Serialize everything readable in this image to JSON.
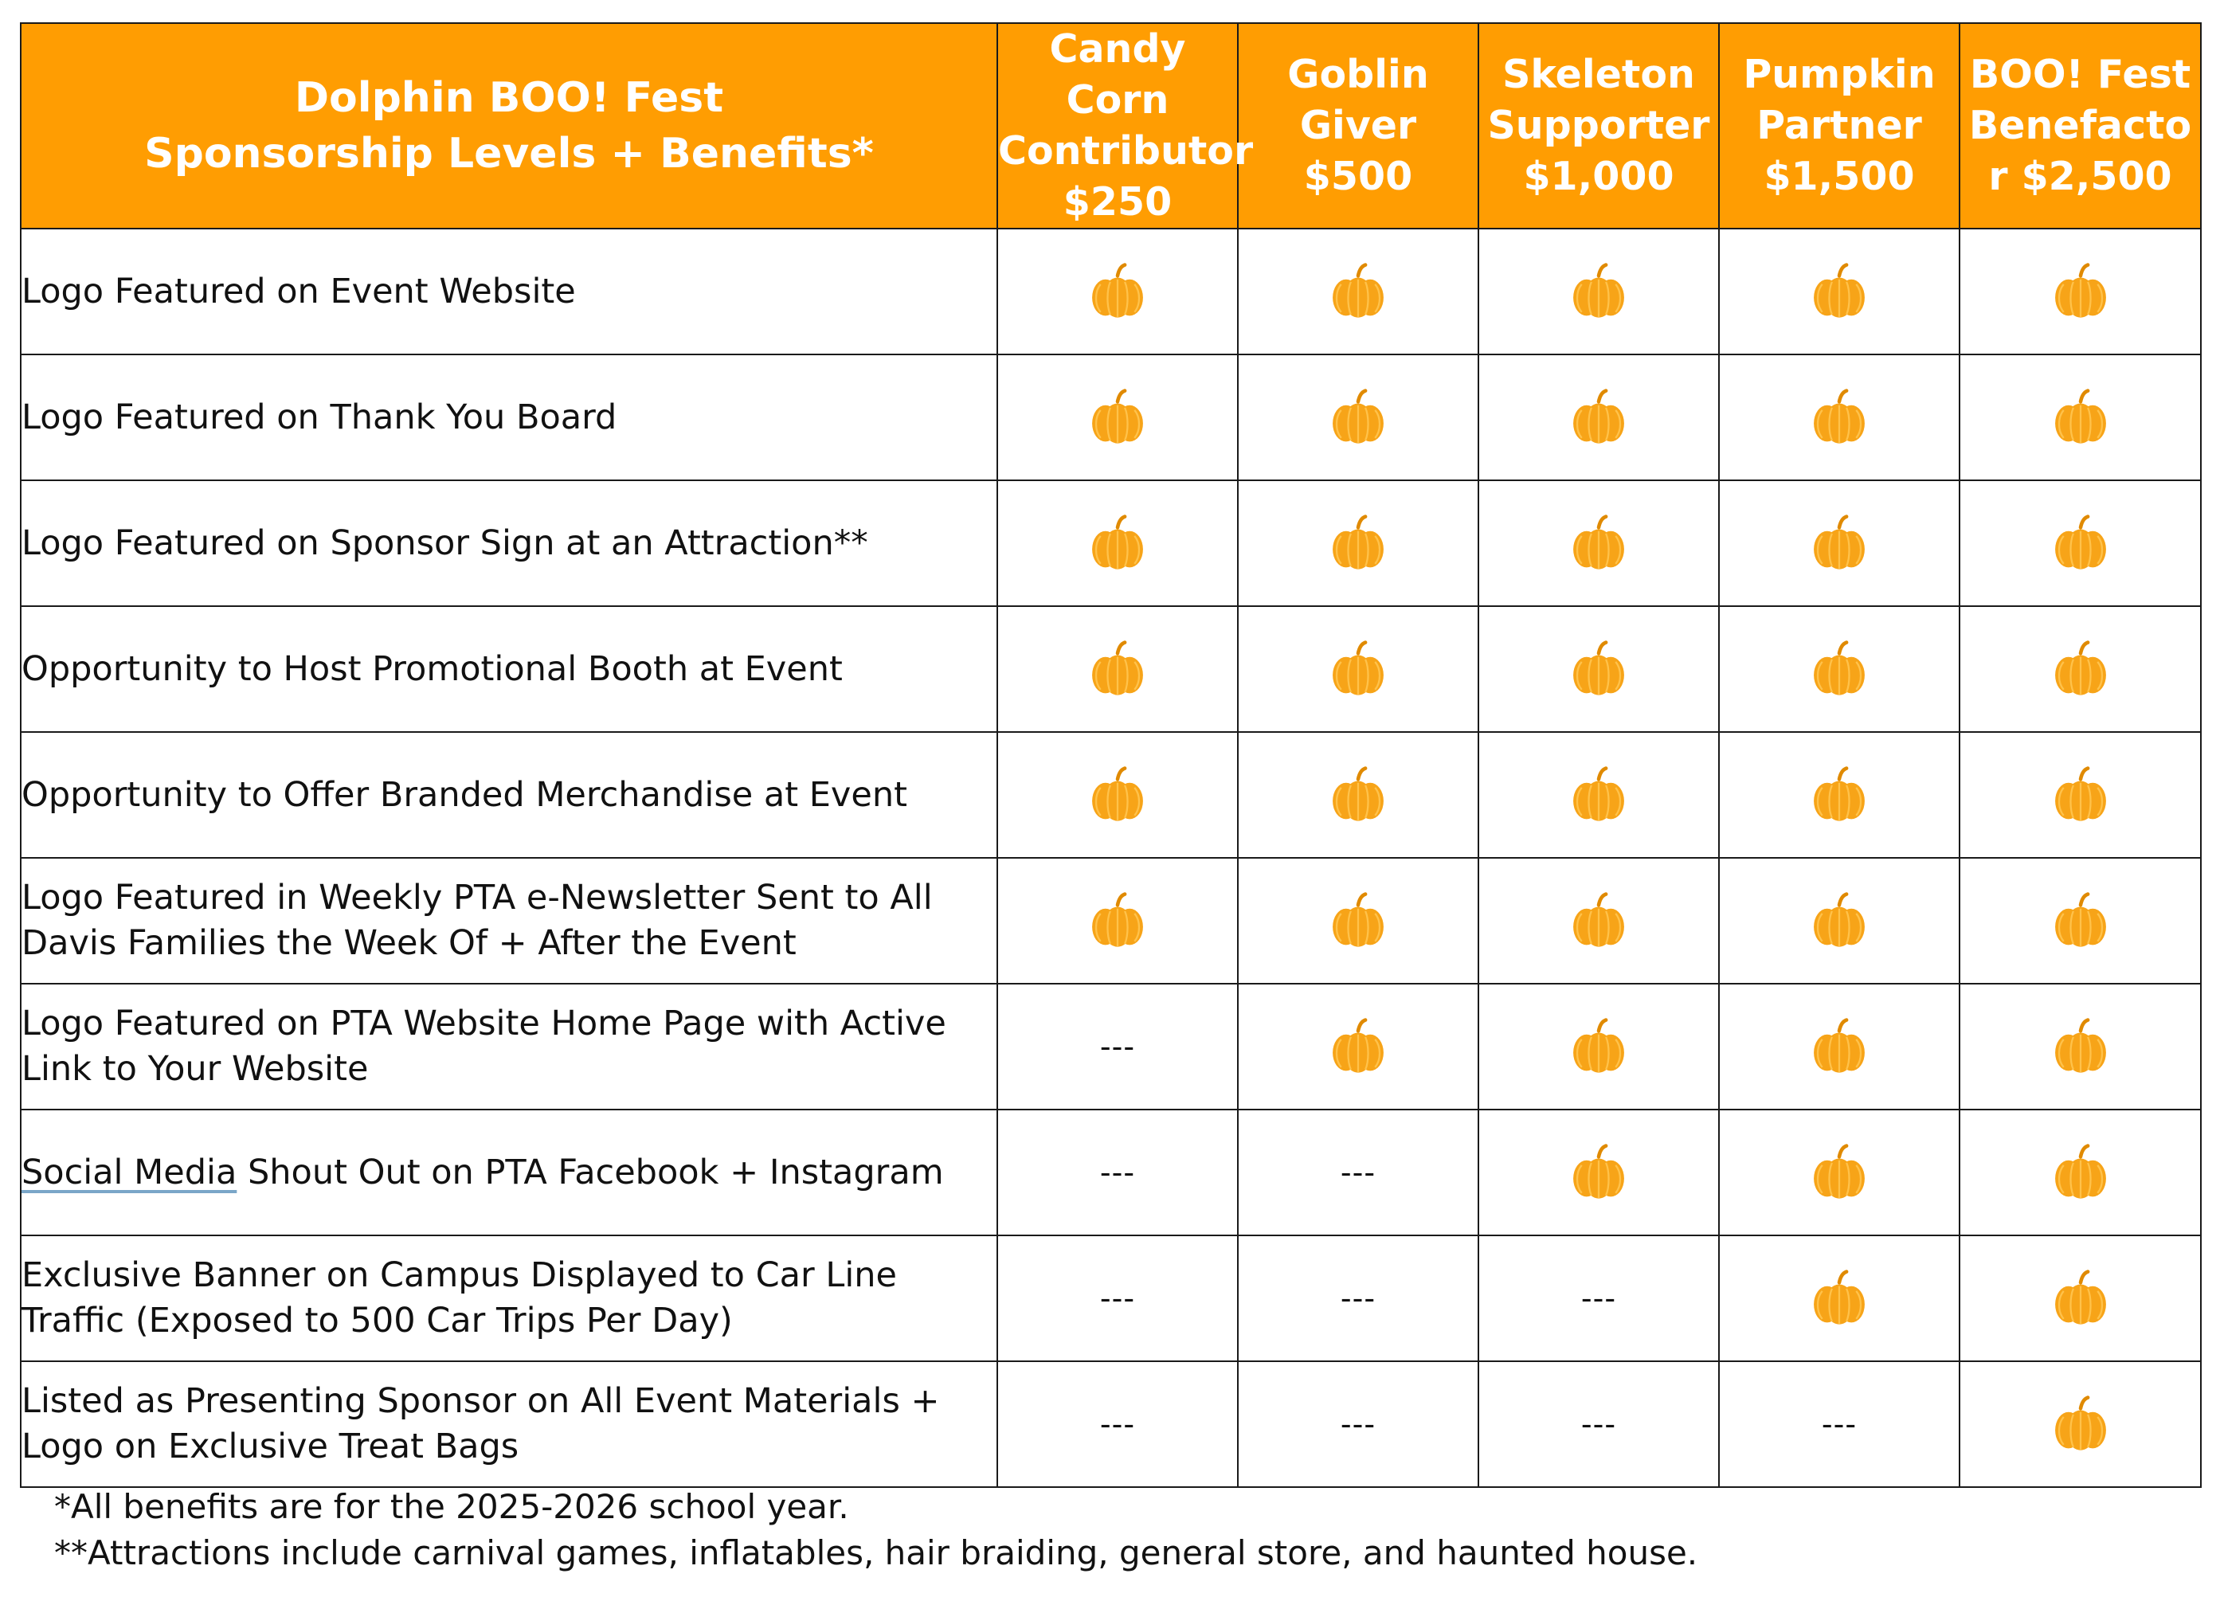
{
  "table": {
    "title_line1": "Dolphin BOO! Fest",
    "title_line2": "Sponsorship Levels + Benefits*",
    "levels": [
      {
        "lines": [
          "Candy Corn",
          "Contributor",
          "$250"
        ]
      },
      {
        "lines": [
          "Goblin",
          "Giver",
          "$500"
        ]
      },
      {
        "lines": [
          "Skeleton",
          "Supporter",
          "$1,000"
        ]
      },
      {
        "lines": [
          "Pumpkin",
          "Partner",
          "$1,500"
        ]
      },
      {
        "lines": [
          "BOO! Fest",
          "Benefacto",
          "r $2,500"
        ]
      }
    ],
    "rows": [
      {
        "benefit": "Logo Featured on Event Website",
        "included": [
          true,
          true,
          true,
          true,
          true
        ]
      },
      {
        "benefit": "Logo Featured on Thank You Board",
        "included": [
          true,
          true,
          true,
          true,
          true
        ]
      },
      {
        "benefit": "Logo Featured on Sponsor Sign at an Attraction**",
        "included": [
          true,
          true,
          true,
          true,
          true
        ]
      },
      {
        "benefit": "Opportunity to Host Promotional Booth at Event",
        "included": [
          true,
          true,
          true,
          true,
          true
        ]
      },
      {
        "benefit": "Opportunity to Offer Branded Merchandise at Event",
        "included": [
          true,
          true,
          true,
          true,
          true
        ]
      },
      {
        "benefit": "Logo Featured in Weekly PTA e-Newsletter Sent to All Davis Families the Week Of + After the Event",
        "included": [
          true,
          true,
          true,
          true,
          true
        ]
      },
      {
        "benefit": "Logo Featured on PTA Website Home Page with Active Link to Your Website",
        "included": [
          false,
          true,
          true,
          true,
          true
        ]
      },
      {
        "benefit_underlined": "Social Media",
        "benefit": " Shout Out on PTA Facebook + Instagram",
        "included": [
          false,
          false,
          true,
          true,
          true
        ]
      },
      {
        "benefit": "Exclusive Banner on Campus Displayed to Car Line Traffic (Exposed to 500 Car Trips Per Day)",
        "included": [
          false,
          false,
          false,
          true,
          true
        ]
      },
      {
        "benefit": "Listed as Presenting Sponsor on All Event Materials + Logo on Exclusive Treat Bags",
        "included": [
          false,
          false,
          false,
          false,
          true
        ]
      }
    ],
    "not_included_text": "---",
    "included_icon": "pumpkin-icon"
  },
  "footnotes": {
    "note1": "*All benefits are for the 2025-2026 school year.",
    "note2": "**Attractions include carnival games, inflatables, hair braiding, general store, and haunted house."
  },
  "colors": {
    "header_bg": "#ff9d02",
    "header_text": "#ffffff",
    "pumpkin": "#f7a418",
    "pumpkin_ribs": "#ffc24a",
    "stem": "#e08a00"
  }
}
